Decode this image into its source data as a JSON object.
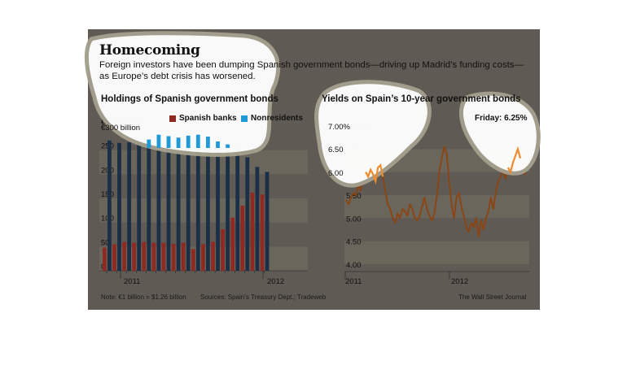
{
  "header": {
    "title": "Homecoming",
    "subtitle": "Foreign investors have been dumping Spanish government bonds—driving up Madrid’s funding costs—as Europe’s debt crisis has worsened."
  },
  "footer": {
    "note": "Note: €1 billion = $1.26 billion",
    "sources": "Sources: Spain’s Treasury Dept.; Tradeweb",
    "publisher": "The Wall Street Journal"
  },
  "colors": {
    "panel": "#5f5b54",
    "band": "#6b665c",
    "spanish_banks": "#8e2a22",
    "nonresidents": "#1b3046",
    "nonresidents_highlight": "#1f9ad6",
    "yield_line": "#8a4516",
    "yield_highlight": "#ef8b2c",
    "callout": "#ffffff"
  },
  "chart_data": [
    {
      "type": "bar",
      "title": "Holdings of Spanish government bonds",
      "y_unit_label": "€300 billion",
      "ylim": [
        0,
        300
      ],
      "yticks": [
        0,
        50,
        100,
        150,
        200,
        250,
        300
      ],
      "ytick_labels": [
        "0",
        "50",
        "100",
        "150",
        "200",
        "250",
        "€300 billion"
      ],
      "x_labels": [
        "2011",
        "2012"
      ],
      "legend": "top-right",
      "series": [
        {
          "name": "Spanish banks",
          "values": [
            48,
            55,
            60,
            58,
            60,
            58,
            58,
            56,
            58,
            45,
            55,
            60,
            86,
            110,
            135,
            162,
            158
          ]
        },
        {
          "name": "Nonresidents",
          "values": [
            270,
            265,
            266,
            276,
            272,
            282,
            279,
            276,
            280,
            282,
            278,
            268,
            262,
            257,
            235,
            215,
            205
          ]
        }
      ]
    },
    {
      "type": "line",
      "title": "Yields on Spain’s 10-year government bonds",
      "annotation": "Friday: 6.25%",
      "ylim": [
        4.0,
        7.0
      ],
      "yticks": [
        4.0,
        4.5,
        5.0,
        5.5,
        6.0,
        6.5,
        7.0
      ],
      "ytick_labels": [
        "4.00",
        "4.50",
        "5.00",
        "5.50",
        "6.00",
        "6.50",
        "7.00%"
      ],
      "x_labels": [
        "2011",
        "2012"
      ],
      "series": [
        {
          "name": "Spain 10-year yield",
          "values": [
            5.4,
            5.3,
            5.45,
            5.55,
            5.5,
            5.7,
            5.6,
            5.85,
            6.0,
            5.9,
            6.05,
            5.95,
            5.8,
            6.1,
            6.15,
            5.9,
            5.6,
            5.3,
            5.2,
            5.0,
            4.9,
            5.1,
            5.0,
            5.2,
            5.15,
            5.05,
            5.3,
            5.2,
            5.0,
            4.95,
            5.05,
            5.25,
            5.45,
            5.2,
            5.05,
            4.95,
            5.1,
            5.5,
            6.0,
            6.3,
            6.55,
            6.4,
            5.8,
            5.3,
            5.0,
            5.45,
            5.55,
            5.25,
            5.05,
            4.8,
            4.7,
            4.9,
            4.8,
            5.0,
            4.6,
            4.95,
            4.75,
            5.0,
            5.15,
            5.45,
            5.2,
            5.55,
            5.8,
            5.9,
            6.05,
            5.85,
            6.1,
            6.0,
            6.2,
            6.35,
            6.5,
            6.3,
            6.1,
            5.95,
            6.25
          ]
        }
      ]
    }
  ]
}
